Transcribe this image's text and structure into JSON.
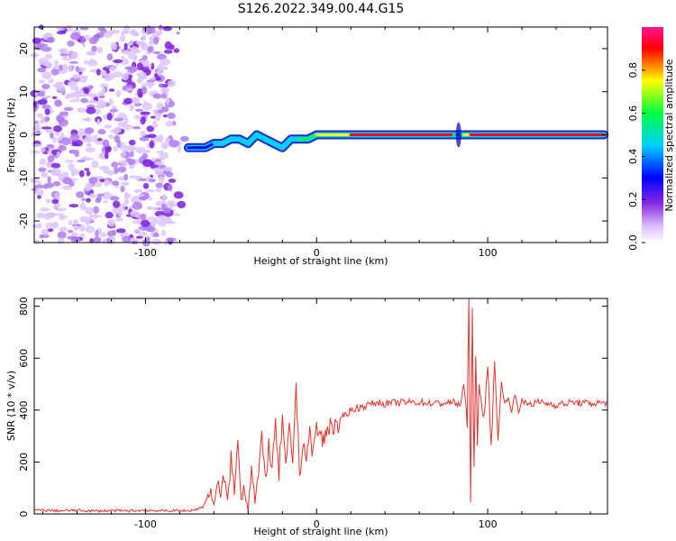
{
  "title": "S126.2022.349.00.44.G15",
  "chart_data": [
    {
      "type": "heatmap",
      "xlabel": "Height of straight line (km)",
      "ylabel": "Frequency (Hz)",
      "xlim": [
        -165,
        170
      ],
      "ylim": [
        -25,
        25
      ],
      "xticks": [
        -100,
        0,
        100
      ],
      "yticks": [
        -20,
        -10,
        0,
        10,
        20
      ],
      "noise_region_x": [
        -165,
        -75
      ],
      "signal_trace": {
        "x": [
          -75,
          -70,
          -65,
          -60,
          -55,
          -50,
          -45,
          -40,
          -35,
          -30,
          -25,
          -20,
          -15,
          -10,
          -5,
          0,
          20,
          40,
          60,
          80,
          82,
          84,
          86,
          90,
          100,
          110,
          120,
          140,
          160,
          168
        ],
        "freq": [
          -3,
          -3,
          -3,
          -2,
          -2,
          -1,
          -1,
          -2,
          0,
          -1,
          -2,
          -3,
          -1,
          -1,
          -1,
          0,
          0,
          0,
          0,
          0,
          0,
          0,
          0,
          0,
          0,
          0,
          0,
          0,
          0,
          0
        ],
        "amplitude": [
          0.25,
          0.4,
          0.35,
          0.45,
          0.5,
          0.45,
          0.5,
          0.45,
          0.55,
          0.5,
          0.45,
          0.5,
          0.5,
          0.55,
          0.6,
          0.7,
          0.8,
          0.85,
          0.9,
          0.85,
          0.3,
          0.5,
          0.7,
          0.9,
          0.9,
          0.85,
          0.85,
          0.9,
          0.9,
          0.9
        ]
      },
      "colorbar": {
        "label": "Normalized spectral amplitude",
        "range": [
          0,
          1
        ],
        "ticks": [
          "0.0",
          "0.2",
          "0.4",
          "0.6",
          "0.8"
        ],
        "colors": [
          "#ffffff",
          "#d8b8ff",
          "#8a2be2",
          "#0000ff",
          "#00cfff",
          "#00ff40",
          "#ffff00",
          "#ff0000",
          "#ff1493"
        ]
      }
    },
    {
      "type": "line",
      "xlabel": "Height of straight line (km)",
      "ylabel": "SNR (10 * v/v)",
      "xlim": [
        -165,
        170
      ],
      "ylim": [
        0,
        830
      ],
      "xticks": [
        -100,
        0,
        100
      ],
      "yticks": [
        0,
        200,
        400,
        600,
        800
      ],
      "color": "#e8312a",
      "series": [
        {
          "x": [
            -165,
            -150,
            -140,
            -130,
            -120,
            -110,
            -100,
            -90,
            -80,
            -75,
            -70,
            -66,
            -63,
            -60,
            -58,
            -56,
            -54,
            -52,
            -50,
            -48,
            -46,
            -44,
            -42,
            -40,
            -38,
            -36,
            -34,
            -32,
            -30,
            -28,
            -26,
            -24,
            -22,
            -20,
            -18,
            -16,
            -14,
            -12,
            -10,
            -8,
            -6,
            -4,
            -2,
            0,
            4,
            8,
            12,
            16,
            20,
            25,
            30,
            35,
            40,
            50,
            60,
            70,
            80,
            84,
            86,
            88,
            89,
            90,
            91,
            92,
            93,
            94,
            95,
            96,
            98,
            100,
            102,
            104,
            106,
            108,
            110,
            112,
            114,
            116,
            118,
            120,
            125,
            130,
            140,
            150,
            160,
            170
          ],
          "y": [
            15,
            12,
            14,
            11,
            13,
            12,
            14,
            12,
            13,
            12,
            18,
            30,
            80,
            40,
            120,
            60,
            150,
            50,
            220,
            80,
            280,
            60,
            110,
            10,
            200,
            40,
            150,
            280,
            140,
            260,
            180,
            330,
            150,
            380,
            160,
            320,
            200,
            500,
            150,
            280,
            220,
            300,
            240,
            330,
            280,
            350,
            330,
            380,
            400,
            410,
            420,
            430,
            425,
            430,
            430,
            425,
            430,
            420,
            500,
            350,
            850,
            50,
            780,
            150,
            600,
            300,
            500,
            450,
            350,
            580,
            250,
            580,
            300,
            500,
            420,
            460,
            380,
            470,
            400,
            430,
            425,
            430,
            420,
            430,
            425,
            430
          ]
        }
      ]
    }
  ]
}
